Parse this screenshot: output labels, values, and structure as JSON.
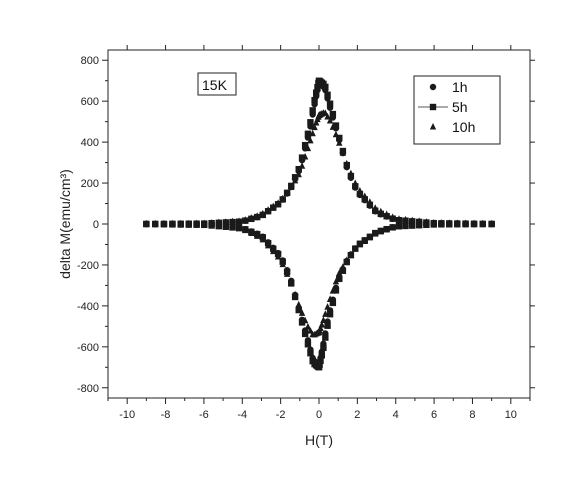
{
  "chart_data": {
    "type": "scatter",
    "title": "",
    "xlabel": "H(T)",
    "ylabel": "delta M(emu/cm³)",
    "xlim": [
      -11,
      11
    ],
    "ylim": [
      -850,
      850
    ],
    "xticks": [
      -10,
      -8,
      -6,
      -4,
      -2,
      0,
      2,
      4,
      6,
      8,
      10
    ],
    "yticks": [
      -800,
      -600,
      -400,
      -200,
      0,
      200,
      400,
      600,
      800
    ],
    "grid": false,
    "legend": "top-right",
    "annotation": "15K",
    "marker_color": "#1a1a1a",
    "series": [
      {
        "name": "1h",
        "marker": "circle",
        "x_range": [
          -9,
          9
        ],
        "points": 70,
        "upper_branch": [
          [
            -9,
            0
          ],
          [
            -6,
            2
          ],
          [
            -4,
            12
          ],
          [
            -3,
            40
          ],
          [
            -2,
            105
          ],
          [
            -1.5,
            170
          ],
          [
            -1,
            270
          ],
          [
            -0.5,
            450
          ],
          [
            -0.2,
            600
          ],
          [
            0,
            690
          ],
          [
            0.3,
            665
          ],
          [
            0.6,
            560
          ],
          [
            1,
            430
          ],
          [
            1.5,
            260
          ],
          [
            2,
            155
          ],
          [
            3,
            55
          ],
          [
            4,
            20
          ],
          [
            6,
            4
          ],
          [
            9,
            0
          ]
        ],
        "lower_branch": [
          [
            -9,
            0
          ],
          [
            -6,
            -4
          ],
          [
            -4,
            -20
          ],
          [
            -3,
            -55
          ],
          [
            -2,
            -155
          ],
          [
            -1.5,
            -260
          ],
          [
            -1,
            -430
          ],
          [
            -0.6,
            -560
          ],
          [
            -0.3,
            -665
          ],
          [
            0,
            -690
          ],
          [
            0.2,
            -600
          ],
          [
            0.5,
            -450
          ],
          [
            1,
            -270
          ],
          [
            1.5,
            -170
          ],
          [
            2,
            -105
          ],
          [
            3,
            -40
          ],
          [
            4,
            -12
          ],
          [
            6,
            -2
          ],
          [
            9,
            0
          ]
        ]
      },
      {
        "name": "5h",
        "marker": "square",
        "x_range": [
          -9,
          9
        ],
        "points": 70,
        "upper_branch": [
          [
            -9,
            0
          ],
          [
            -6,
            2
          ],
          [
            -4,
            12
          ],
          [
            -3,
            40
          ],
          [
            -2,
            105
          ],
          [
            -1.5,
            175
          ],
          [
            -1,
            280
          ],
          [
            -0.5,
            470
          ],
          [
            -0.2,
            620
          ],
          [
            0,
            700
          ],
          [
            0.3,
            680
          ],
          [
            0.6,
            580
          ],
          [
            1,
            440
          ],
          [
            1.5,
            270
          ],
          [
            2,
            160
          ],
          [
            3,
            58
          ],
          [
            4,
            20
          ],
          [
            6,
            4
          ],
          [
            9,
            0
          ]
        ],
        "lower_branch": [
          [
            -9,
            0
          ],
          [
            -6,
            -4
          ],
          [
            -4,
            -20
          ],
          [
            -3,
            -58
          ],
          [
            -2,
            -160
          ],
          [
            -1.5,
            -270
          ],
          [
            -1,
            -440
          ],
          [
            -0.6,
            -580
          ],
          [
            -0.3,
            -680
          ],
          [
            0,
            -700
          ],
          [
            0.2,
            -620
          ],
          [
            0.5,
            -470
          ],
          [
            1,
            -280
          ],
          [
            1.5,
            -175
          ],
          [
            2,
            -105
          ],
          [
            3,
            -40
          ],
          [
            4,
            -12
          ],
          [
            6,
            -2
          ],
          [
            9,
            0
          ]
        ]
      },
      {
        "name": "10h",
        "marker": "triangle",
        "x_range": [
          -9,
          9
        ],
        "points": 70,
        "upper_branch": [
          [
            -9,
            0
          ],
          [
            -6,
            2
          ],
          [
            -4,
            14
          ],
          [
            -3,
            45
          ],
          [
            -2,
            110
          ],
          [
            -1.5,
            170
          ],
          [
            -1,
            250
          ],
          [
            -0.5,
            390
          ],
          [
            -0.2,
            480
          ],
          [
            0,
            530
          ],
          [
            0.3,
            545
          ],
          [
            0.6,
            500
          ],
          [
            1,
            410
          ],
          [
            1.5,
            280
          ],
          [
            2,
            175
          ],
          [
            3,
            70
          ],
          [
            4,
            25
          ],
          [
            6,
            5
          ],
          [
            9,
            0
          ]
        ],
        "lower_branch": [
          [
            -9,
            0
          ],
          [
            -6,
            -5
          ],
          [
            -4,
            -25
          ],
          [
            -3,
            -70
          ],
          [
            -2,
            -175
          ],
          [
            -1.5,
            -280
          ],
          [
            -1,
            -410
          ],
          [
            -0.6,
            -500
          ],
          [
            -0.3,
            -545
          ],
          [
            0,
            -530
          ],
          [
            0.2,
            -480
          ],
          [
            0.5,
            -390
          ],
          [
            1,
            -250
          ],
          [
            1.5,
            -170
          ],
          [
            2,
            -110
          ],
          [
            3,
            -45
          ],
          [
            4,
            -14
          ],
          [
            6,
            -2
          ],
          [
            9,
            0
          ]
        ]
      }
    ]
  }
}
